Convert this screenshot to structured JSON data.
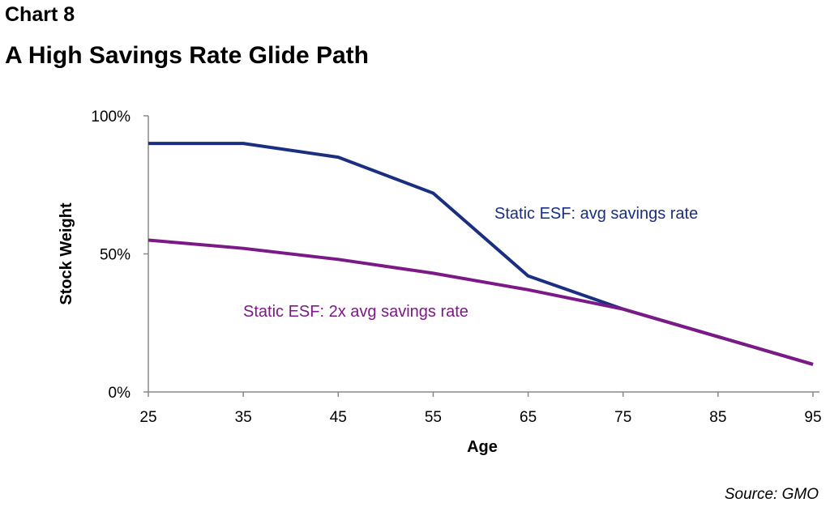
{
  "header": {
    "label": "Chart 8",
    "title": "A High Savings Rate Glide Path"
  },
  "source": "Source: GMO",
  "chart_data": {
    "type": "line",
    "xlabel": "Age",
    "ylabel": "Stock Weight",
    "x_ticks": [
      "25",
      "35",
      "45",
      "55",
      "65",
      "75",
      "85",
      "95"
    ],
    "y_ticks": [
      "0%",
      "50%",
      "100%"
    ],
    "xlim": [
      25,
      95
    ],
    "ylim": [
      0,
      100
    ],
    "grid": false,
    "series": [
      {
        "name": "Static ESF: avg savings rate",
        "color": "#1a2f7f",
        "x": [
          25,
          35,
          45,
          55,
          65,
          75,
          85,
          95
        ],
        "y": [
          90,
          90,
          85,
          72,
          42,
          30,
          20,
          10
        ]
      },
      {
        "name": "Static ESF: 2x avg savings rate",
        "color": "#7b1a86",
        "x": [
          25,
          35,
          45,
          55,
          65,
          75,
          85,
          95
        ],
        "y": [
          55,
          52,
          48,
          43,
          37,
          30,
          20,
          10
        ]
      }
    ]
  }
}
